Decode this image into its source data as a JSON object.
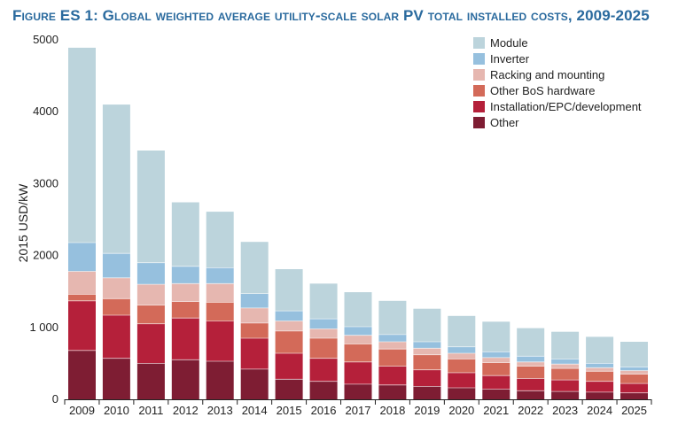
{
  "title": "Figure ES 1: Global weighted average utility-scale solar PV total installed costs, 2009-2025",
  "chart_data": {
    "type": "bar",
    "stacked": true,
    "title": "Figure ES 1: Global weighted average utility-scale solar PV total installed costs, 2009-2025",
    "xlabel": "",
    "ylabel": "2015 USD/kW",
    "ylim": [
      0,
      5000
    ],
    "yticks": [
      0,
      1000,
      2000,
      3000,
      4000,
      5000
    ],
    "ytick_labels": [
      "0",
      "1 000",
      "2000",
      "3000",
      "4000",
      "5000"
    ],
    "grid": false,
    "legend_position": "top-right",
    "categories": [
      "2009",
      "2010",
      "2011",
      "2012",
      "2013",
      "2014",
      "2015",
      "2016",
      "2017",
      "2018",
      "2019",
      "2020",
      "2021",
      "2022",
      "2023",
      "2024",
      "2025"
    ],
    "series": [
      {
        "name": "Other",
        "color": "#7e1d33",
        "values": [
          680,
          570,
          500,
          550,
          530,
          420,
          280,
          250,
          210,
          200,
          180,
          160,
          140,
          120,
          110,
          100,
          90
        ]
      },
      {
        "name": "Installation/EPC/development",
        "color": "#b5203a",
        "values": [
          690,
          600,
          550,
          580,
          560,
          430,
          360,
          320,
          310,
          260,
          230,
          210,
          190,
          170,
          160,
          150,
          130
        ]
      },
      {
        "name": "Other BoS hardware",
        "color": "#d36a59",
        "values": [
          90,
          230,
          260,
          230,
          260,
          210,
          310,
          280,
          250,
          240,
          210,
          190,
          180,
          170,
          160,
          140,
          130
        ]
      },
      {
        "name": "Racking and mounting",
        "color": "#e6b7b0",
        "values": [
          320,
          290,
          290,
          250,
          260,
          210,
          140,
          130,
          120,
          100,
          90,
          80,
          70,
          60,
          60,
          50,
          50
        ]
      },
      {
        "name": "Inverter",
        "color": "#96c0de",
        "values": [
          400,
          340,
          300,
          240,
          220,
          200,
          140,
          140,
          120,
          100,
          90,
          90,
          80,
          80,
          70,
          60,
          50
        ]
      },
      {
        "name": "Module",
        "color": "#bcd4dc",
        "values": [
          2710,
          2070,
          1560,
          890,
          780,
          720,
          580,
          490,
          480,
          470,
          460,
          430,
          420,
          390,
          380,
          370,
          350
        ]
      }
    ],
    "legend_order": [
      "Module",
      "Inverter",
      "Racking and mounting",
      "Other BoS hardware",
      "Installation/EPC/development",
      "Other"
    ]
  }
}
